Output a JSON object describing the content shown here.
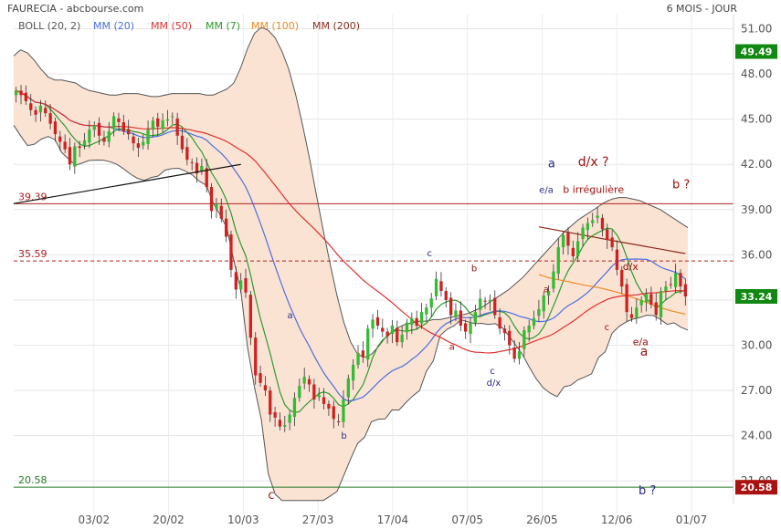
{
  "header": {
    "title": "FAURECIA - abcbourse.com",
    "period": "6 MOIS - JOUR"
  },
  "legend": [
    {
      "label": "BOLL (20, 2)",
      "color": "#555555"
    },
    {
      "label": "MM (20)",
      "color": "#4a6fe0"
    },
    {
      "label": "MM (50)",
      "color": "#e03030"
    },
    {
      "label": "MM (7)",
      "color": "#2a9a2a"
    },
    {
      "label": "MM (100)",
      "color": "#ee8a22"
    },
    {
      "label": "MM (200)",
      "color": "#8b2a1a"
    }
  ],
  "colors": {
    "bull": "#33bb33",
    "bear": "#cc2222",
    "band_fill": "#fbe3d4",
    "band_line": "#555555",
    "support_line": "#2a7a2a",
    "resistance_line": "#b02020",
    "annotation_blue": "#2a2a8a",
    "annotation_red": "#a01010"
  },
  "chart_data": {
    "type": "candlestick",
    "instrument": "FAURECIA",
    "yticks": [
      "51.00",
      "48.00",
      "45.00",
      "42.00",
      "39.00",
      "36.00",
      "33.00",
      "30.00",
      "27.00",
      "24.00",
      "21.00"
    ],
    "ylim": [
      19.5,
      52.0
    ],
    "xticks": [
      "03/02",
      "20/02",
      "10/03",
      "27/03",
      "17/04",
      "07/05",
      "26/05",
      "12/06",
      "01/07"
    ],
    "last_price": "33.24",
    "price_tags": [
      {
        "label": "49.49",
        "value": 49.49,
        "color": "#118811"
      },
      {
        "label": "33.24",
        "value": 33.24,
        "color": "#118811"
      },
      {
        "label": "20.58",
        "value": 20.58,
        "color": "#aa1111"
      }
    ],
    "levels": [
      {
        "label": "39.39",
        "value": 39.39,
        "style": "solid",
        "color": "#b02020"
      },
      {
        "label": "35.59",
        "value": 35.59,
        "style": "dashed",
        "color": "#b02020"
      },
      {
        "label": "20.58",
        "value": 20.58,
        "style": "solid",
        "color": "#2a7a2a"
      }
    ],
    "closes": [
      46.9,
      46.6,
      46.2,
      45.6,
      45.3,
      45.9,
      45.4,
      44.7,
      44.0,
      43.5,
      43.0,
      42.0,
      43.2,
      43.1,
      43.6,
      44.3,
      44.6,
      43.9,
      43.5,
      44.2,
      45.2,
      44.8,
      44.2,
      44.0,
      43.4,
      43.1,
      43.5,
      44.3,
      44.9,
      44.5,
      44.9,
      45.0,
      45.2,
      43.9,
      43.0,
      42.3,
      42.1,
      41.4,
      41.9,
      40.5,
      38.9,
      39.4,
      38.4,
      37.2,
      35.0,
      33.7,
      34.3,
      33.5,
      30.5,
      28.0,
      27.5,
      27.0,
      25.4,
      25.2,
      24.6,
      24.7,
      25.4,
      26.5,
      27.3,
      27.9,
      27.4,
      26.4,
      26.7,
      26.1,
      25.8,
      25.1,
      24.9,
      26.4,
      27.8,
      28.7,
      29.5,
      29.2,
      31.1,
      31.7,
      31.3,
      30.9,
      30.6,
      31.3,
      30.2,
      30.7,
      31.5,
      31.8,
      31.3,
      32.2,
      32.5,
      33.1,
      34.4,
      33.6,
      33.0,
      32.0,
      32.3,
      31.3,
      30.9,
      31.5,
      32.2,
      33.1,
      32.9,
      33.0,
      32.0,
      31.1,
      30.8,
      30.0,
      29.1,
      29.6,
      31.0,
      31.3,
      31.8,
      32.4,
      33.3,
      33.6,
      34.9,
      36.5,
      37.3,
      36.6,
      35.9,
      36.9,
      37.8,
      38.1,
      38.3,
      38.6,
      37.7,
      37.0,
      36.5,
      35.0,
      33.9,
      32.2,
      31.8,
      32.5,
      33.0,
      33.4,
      32.7,
      32.0,
      33.6,
      33.9,
      34.0,
      34.8,
      33.9,
      33.24
    ],
    "band_upper": [
      49.2,
      49.6,
      49.4,
      48.9,
      48.3,
      47.8,
      47.6,
      47.6,
      47.5,
      47.4,
      47.1,
      46.9,
      46.8,
      46.7,
      46.6,
      46.6,
      46.7,
      46.7,
      46.7,
      46.6,
      46.5,
      46.5,
      46.6,
      46.7,
      46.7,
      46.7,
      46.7,
      46.7,
      46.6,
      46.6,
      46.8,
      47.0,
      47.4,
      48.4,
      49.7,
      50.7,
      51.1,
      50.9,
      50.4,
      49.5,
      48.3,
      46.6,
      44.6,
      42.4,
      40.0,
      37.6,
      35.4,
      33.3,
      31.5,
      30.2,
      29.4,
      29.2,
      29.4,
      29.9,
      30.5,
      30.9,
      31.2,
      31.4,
      31.5,
      31.6,
      31.6,
      31.7,
      31.7,
      31.8,
      31.9,
      32.0,
      32.1,
      32.3,
      32.5,
      32.8,
      33.1,
      33.4,
      33.7,
      34.1,
      34.5,
      35.0,
      35.5,
      36.0,
      36.5,
      37.0,
      37.5,
      37.9,
      38.3,
      38.6,
      38.9,
      39.2,
      39.5,
      39.7,
      39.8,
      39.8,
      39.7,
      39.6,
      39.4,
      39.2,
      39.0,
      38.7,
      38.4,
      38.1,
      37.8
    ]
  },
  "annotations": [
    {
      "text": "a",
      "color": "#2a2a8a",
      "value": 31.8
    },
    {
      "text": "b",
      "color": "#2a2a8a",
      "value": 23.8
    },
    {
      "text": "c",
      "color": "#a01010",
      "value": 19.8
    },
    {
      "text": "c",
      "color": "#2a2a8a",
      "value": 35.9
    },
    {
      "text": "b",
      "color": "#a01010",
      "value": 34.9
    },
    {
      "text": "a",
      "color": "#a01010",
      "value": 29.7
    },
    {
      "text": "c",
      "color": "#2a2a8a",
      "value": 28.1
    },
    {
      "text": "d/x",
      "color": "#2a2a8a",
      "value": 27.3
    },
    {
      "text": "a",
      "color": "#2a2a8a",
      "value": 41.8
    },
    {
      "text": "e/a",
      "color": "#2a2a8a",
      "value": 40.1
    },
    {
      "text": "d/x ?",
      "color": "#a01010",
      "value": 41.9
    },
    {
      "text": "b irrégulière",
      "color": "#a01010",
      "value": 40.1
    },
    {
      "text": "a",
      "color": "#a01010",
      "value": 33.5
    },
    {
      "text": "b ?",
      "color": "#a01010",
      "value": 40.4
    },
    {
      "text": "d/x",
      "color": "#a01010",
      "value": 35.0
    },
    {
      "text": "c",
      "color": "#a01010",
      "value": 31.0
    },
    {
      "text": "e/a",
      "color": "#a01010",
      "value": 30.0
    },
    {
      "text": "a",
      "color": "#a01010",
      "value": 29.3
    },
    {
      "text": "b ?",
      "color": "#2a2a8a",
      "value": 20.1
    }
  ]
}
